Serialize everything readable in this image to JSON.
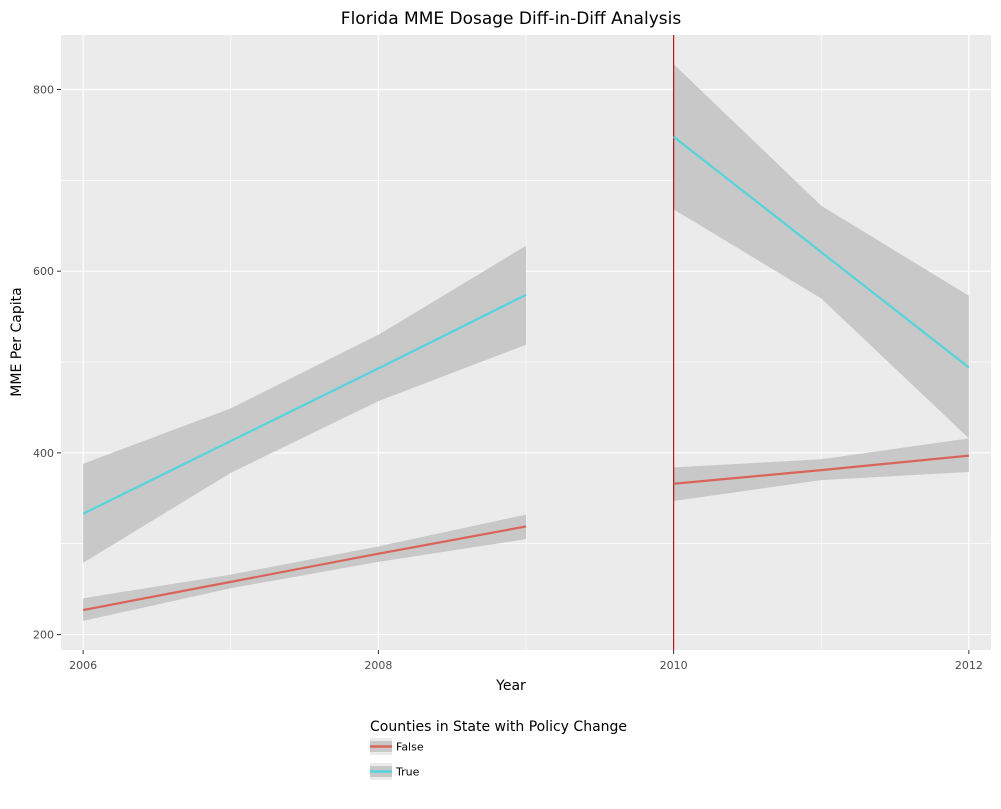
{
  "chart_data": {
    "type": "line",
    "title": "Florida MME Dosage Diff-in-Diff Analysis",
    "xlabel": "Year",
    "ylabel": "MME Per Capita",
    "xlim": [
      2005.85,
      2012.15
    ],
    "ylim": [
      183,
      860
    ],
    "xticks": [
      2006,
      2008,
      2010,
      2012
    ],
    "yticks": [
      200,
      400,
      600,
      800
    ],
    "xtick_labels": [
      "2006",
      "2008",
      "2010",
      "2012"
    ],
    "ytick_labels": [
      "200",
      "400",
      "600",
      "800"
    ],
    "policy_line_x": 2010,
    "legend": {
      "title": "Counties in State with Policy Change",
      "position": "bottom"
    },
    "series": [
      {
        "name": "False",
        "color": "#d9645a",
        "segments": [
          {
            "x": [
              2006,
              2007,
              2008,
              2009
            ],
            "y": [
              227,
              258,
              289,
              319
            ],
            "lower": [
              215,
              251,
              280,
              305
            ],
            "upper": [
              240,
              266,
              297,
              332
            ]
          },
          {
            "x": [
              2010,
              2011,
              2012
            ],
            "y": [
              366,
              381,
              397
            ],
            "lower": [
              347,
              370,
              379
            ],
            "upper": [
              384,
              393,
              416
            ]
          }
        ]
      },
      {
        "name": "True",
        "color": "#56d4dc",
        "segments": [
          {
            "x": [
              2006,
              2007,
              2008,
              2009
            ],
            "y": [
              333,
              413,
              493,
              574
            ],
            "lower": [
              279,
              378,
              457,
              519
            ],
            "upper": [
              388,
              449,
              530,
              628
            ]
          },
          {
            "x": [
              2010,
              2011,
              2012
            ],
            "y": [
              748,
              621,
              494
            ],
            "lower": [
              668,
              570,
              416
            ],
            "upper": [
              828,
              672,
              573
            ]
          }
        ]
      }
    ]
  },
  "colors": {
    "panel": "#ebebeb",
    "grid": "#ffffff",
    "ribbon": "#c8c8c8",
    "policy_line": "#b01818"
  }
}
